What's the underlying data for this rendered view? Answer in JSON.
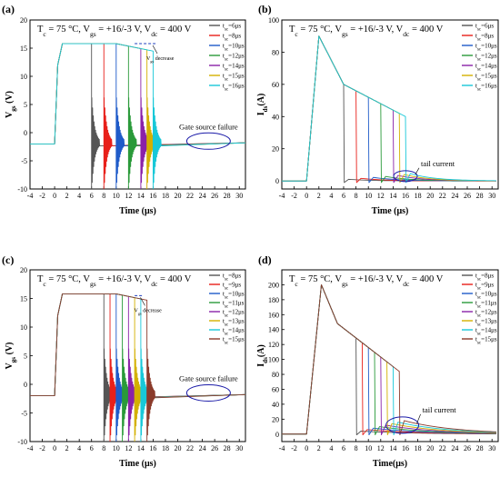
{
  "chart_data": [
    {
      "panel": "(a)",
      "type": "line",
      "title": "T_c = 75 °C, V_gs = +16/-3 V, V_dc = 400 V",
      "xlabel": "Time (μs)",
      "ylabel": "V_gs (V)",
      "xlim": [
        -4,
        31
      ],
      "ylim": [
        -10,
        20
      ],
      "xticks": [
        -4,
        -2,
        0,
        2,
        4,
        6,
        8,
        10,
        12,
        14,
        16,
        18,
        20,
        22,
        24,
        26,
        28,
        30
      ],
      "yticks": [
        -10,
        -5,
        0,
        5,
        10,
        15,
        20
      ],
      "legend_position": "top-right",
      "series": [
        {
          "name": "t_sc=6μs",
          "color": "#555555",
          "t_fail": 6
        },
        {
          "name": "t_sc=8μs",
          "color": "#e8201a",
          "t_fail": 8
        },
        {
          "name": "t_sc=10μs",
          "color": "#1f5bc9",
          "t_fail": 10
        },
        {
          "name": "t_sc=12μs",
          "color": "#2a9a3a",
          "t_fail": 12
        },
        {
          "name": "t_sc=14μs",
          "color": "#8a22a8",
          "t_fail": 14
        },
        {
          "name": "t_sc=15μs",
          "color": "#d4b000",
          "t_fail": 15
        },
        {
          "name": "t_sc=16μs",
          "color": "#18c8d8",
          "t_fail": 16
        }
      ],
      "annotations": [
        "V_gs decrease",
        "Gate source failure"
      ]
    },
    {
      "panel": "(b)",
      "type": "line",
      "title": "T_c = 75 °C, V_gs = +16/-3 V, V_dc = 400 V",
      "xlabel": "Time (μs)",
      "ylabel": "I_ds(A)",
      "xlim": [
        -4,
        31
      ],
      "ylim": [
        -5,
        100
      ],
      "xticks": [
        -4,
        -2,
        0,
        2,
        4,
        6,
        8,
        10,
        12,
        14,
        16,
        18,
        20,
        22,
        24,
        26,
        28,
        30
      ],
      "yticks": [
        0,
        20,
        40,
        60,
        80,
        100
      ],
      "legend_position": "top-right",
      "peak_current": 90,
      "series": [
        {
          "name": "t_sc=6μs",
          "color": "#555555",
          "t_fail": 6
        },
        {
          "name": "t_sc=8μs",
          "color": "#e8201a",
          "t_fail": 8
        },
        {
          "name": "t_sc=10μs",
          "color": "#1f5bc9",
          "t_fail": 10
        },
        {
          "name": "t_sc=12μs",
          "color": "#2a9a3a",
          "t_fail": 12
        },
        {
          "name": "t_sc=14μs",
          "color": "#8a22a8",
          "t_fail": 14
        },
        {
          "name": "t_sc=15μs",
          "color": "#d4b000",
          "t_fail": 15
        },
        {
          "name": "t_sc=16μs",
          "color": "#18c8d8",
          "t_fail": 16
        }
      ],
      "annotations": [
        "tail current"
      ]
    },
    {
      "panel": "(c)",
      "type": "line",
      "title": "T_c = 75 °C, V_gs = +16/-3 V, V_dc = 400 V",
      "xlabel": "Time (μs)",
      "ylabel": "V_gs (V)",
      "xlim": [
        -4,
        31
      ],
      "ylim": [
        -10,
        20
      ],
      "xticks": [
        -4,
        -2,
        0,
        2,
        4,
        6,
        8,
        10,
        12,
        14,
        16,
        18,
        20,
        22,
        24,
        26,
        28,
        30
      ],
      "yticks": [
        -10,
        -5,
        0,
        5,
        10,
        15,
        20
      ],
      "legend_position": "top-right",
      "series": [
        {
          "name": "t_sc=8μs",
          "color": "#555555",
          "t_fail": 8
        },
        {
          "name": "t_sc=9μs",
          "color": "#e8201a",
          "t_fail": 9
        },
        {
          "name": "t_sc=10μs",
          "color": "#1f5bc9",
          "t_fail": 10
        },
        {
          "name": "t_sc=11μs",
          "color": "#2a9a3a",
          "t_fail": 11
        },
        {
          "name": "t_sc=12μs",
          "color": "#8a22a8",
          "t_fail": 12
        },
        {
          "name": "t_sc=13μs",
          "color": "#d4b000",
          "t_fail": 13
        },
        {
          "name": "t_sc=14μs",
          "color": "#18c8d8",
          "t_fail": 14
        },
        {
          "name": "t_sc=15μs",
          "color": "#8b3a2a",
          "t_fail": 15
        }
      ],
      "annotations": [
        "V_gs decrease",
        "Gate source failure"
      ]
    },
    {
      "panel": "(d)",
      "type": "line",
      "title": "T_c = 75 °C, V_gs = +16/-3 V, V_dc = 400 V",
      "xlabel": "Time(μs)",
      "ylabel": "I_ds(A)",
      "xlim": [
        -4,
        31
      ],
      "ylim": [
        -10,
        220
      ],
      "xticks": [
        -4,
        -2,
        0,
        2,
        4,
        6,
        8,
        10,
        12,
        14,
        16,
        18,
        20,
        22,
        24,
        26,
        28,
        30
      ],
      "yticks": [
        0,
        20,
        40,
        60,
        80,
        100,
        120,
        140,
        160,
        180,
        200
      ],
      "legend_position": "top-right",
      "peak_current": 200,
      "series": [
        {
          "name": "t_sc=8μs",
          "color": "#555555",
          "t_fail": 8
        },
        {
          "name": "t_sc=9μs",
          "color": "#e8201a",
          "t_fail": 9
        },
        {
          "name": "t_sc=10μs",
          "color": "#1f5bc9",
          "t_fail": 10
        },
        {
          "name": "t_sc=11μs",
          "color": "#2a9a3a",
          "t_fail": 11
        },
        {
          "name": "t_sc=12μs",
          "color": "#8a22a8",
          "t_fail": 12
        },
        {
          "name": "t_sc=13μs",
          "color": "#d4b000",
          "t_fail": 13
        },
        {
          "name": "t_sc=14μs",
          "color": "#18c8d8",
          "t_fail": 14
        },
        {
          "name": "t_sc=15μs",
          "color": "#8b3a2a",
          "t_fail": 15
        }
      ],
      "annotations": [
        "tail current"
      ]
    }
  ]
}
